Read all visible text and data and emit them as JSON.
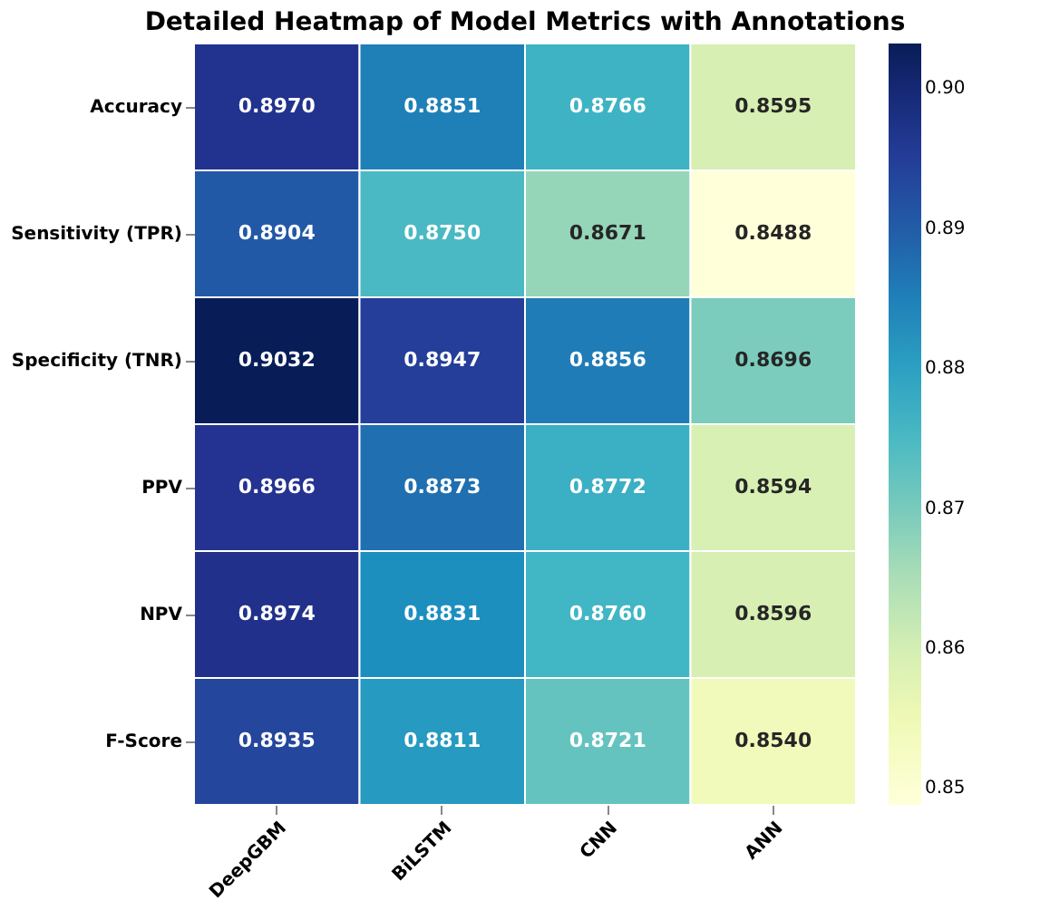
{
  "chart_data": {
    "type": "heatmap",
    "title": "Detailed Heatmap of Model Metrics with Annotations",
    "categories": [
      "DeepGBM",
      "BiLSTM",
      "CNN",
      "ANN"
    ],
    "y_categories": [
      "Accuracy",
      "Sensitivity (TPR)",
      "Specificity (TNR)",
      "PPV",
      "NPV",
      "F-Score"
    ],
    "cells": [
      [
        0.897,
        0.8851,
        0.8766,
        0.8595
      ],
      [
        0.8904,
        0.875,
        0.8671,
        0.8488
      ],
      [
        0.9032,
        0.8947,
        0.8856,
        0.8696
      ],
      [
        0.8966,
        0.8873,
        0.8772,
        0.8594
      ],
      [
        0.8974,
        0.8831,
        0.876,
        0.8596
      ],
      [
        0.8935,
        0.8811,
        0.8721,
        0.854
      ]
    ],
    "cell_labels": [
      [
        "0.8970",
        "0.8851",
        "0.8766",
        "0.8595"
      ],
      [
        "0.8904",
        "0.8750",
        "0.8671",
        "0.8488"
      ],
      [
        "0.9032",
        "0.8947",
        "0.8856",
        "0.8696"
      ],
      [
        "0.8966",
        "0.8873",
        "0.8772",
        "0.8594"
      ],
      [
        "0.8974",
        "0.8831",
        "0.8760",
        "0.8596"
      ],
      [
        "0.8935",
        "0.8811",
        "0.8721",
        "0.8540"
      ]
    ],
    "clim": [
      0.8488,
      0.9032
    ],
    "cticks": [
      0.85,
      0.86,
      0.87,
      0.88,
      0.89,
      {
        "value": 0.9,
        "label": "0.90"
      }
    ]
  }
}
